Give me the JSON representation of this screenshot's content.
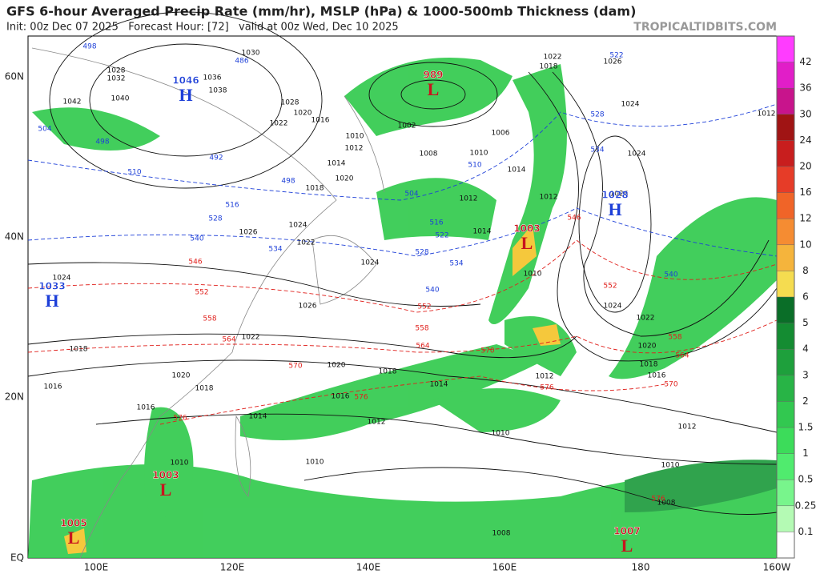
{
  "header": {
    "title": "GFS 6-hour Averaged Precip Rate (mm/hr), MSLP (hPa) & 1000-500mb Thickness (dam)",
    "subtitle": "Init: 00z Dec 07 2025   Forecast Hour: [72]   valid at 00z Wed, Dec 10 2025",
    "watermark": "TROPICALTIDBITS.COM"
  },
  "map": {
    "lat_labels": [
      "60N",
      "40N",
      "20N",
      "EQ"
    ],
    "lon_labels": [
      "100E",
      "120E",
      "140E",
      "160E",
      "180",
      "160W"
    ],
    "centers": [
      {
        "label": "H",
        "pressure": 1046
      },
      {
        "label": "H",
        "pressure": 1033
      },
      {
        "label": "H",
        "pressure": 1028
      },
      {
        "label": "L",
        "pressure": 989
      },
      {
        "label": "L",
        "pressure": 1003
      },
      {
        "label": "L",
        "pressure": 1003
      },
      {
        "label": "L",
        "pressure": 1005
      },
      {
        "label": "L",
        "pressure": 1007
      }
    ],
    "isobar_labels": [
      1030,
      1028,
      1032,
      1040,
      1042,
      1036,
      1038,
      1028,
      1020,
      1022,
      1016,
      1012,
      1010,
      1008,
      1002,
      1014,
      1020,
      1018,
      1024,
      1026,
      1022,
      1024,
      1026,
      1022,
      1020,
      1018,
      1016,
      1014,
      1012,
      1010,
      1010,
      1008,
      1012,
      1010,
      1008,
      1012,
      1016,
      1018,
      1020,
      1022,
      1024,
      1024,
      1024,
      1026,
      1012,
      1014,
      1012,
      1014,
      1010,
      1006,
      1010,
      1018,
      1022,
      1026,
      1012,
      1010,
      1018,
      1020,
      1016,
      1014,
      1018,
      1016,
      1024
    ],
    "thickness_labels_cold": {
      "color": "#1d3fd8",
      "values": [
        498,
        486,
        504,
        498,
        492,
        510,
        498,
        516,
        528,
        540,
        534,
        528,
        534,
        540,
        522,
        522,
        528,
        534,
        540,
        516,
        504,
        510
      ]
    },
    "thickness_labels_warm": {
      "color": "#e0201c",
      "values": [
        546,
        552,
        558,
        564,
        570,
        576,
        576,
        552,
        558,
        564,
        570,
        576,
        546,
        552,
        558,
        564,
        570,
        576
      ]
    }
  },
  "colorbar": {
    "ticks": [
      42,
      36,
      30,
      24,
      20,
      16,
      12,
      10,
      8,
      6,
      5,
      4,
      3,
      2,
      1.5,
      1,
      0.5,
      0.25,
      0.1
    ],
    "colors": [
      "#ff3cff",
      "#e11ec8",
      "#c8148c",
      "#a01414",
      "#c81e1e",
      "#e63c28",
      "#f06428",
      "#f58c32",
      "#f5b43c",
      "#f5dc50",
      "#0a6e28",
      "#148c32",
      "#1ea03c",
      "#28b446",
      "#32c850",
      "#3cdc5a",
      "#50eb6e",
      "#78f58c",
      "#b4fab4",
      "#ffffff"
    ]
  }
}
